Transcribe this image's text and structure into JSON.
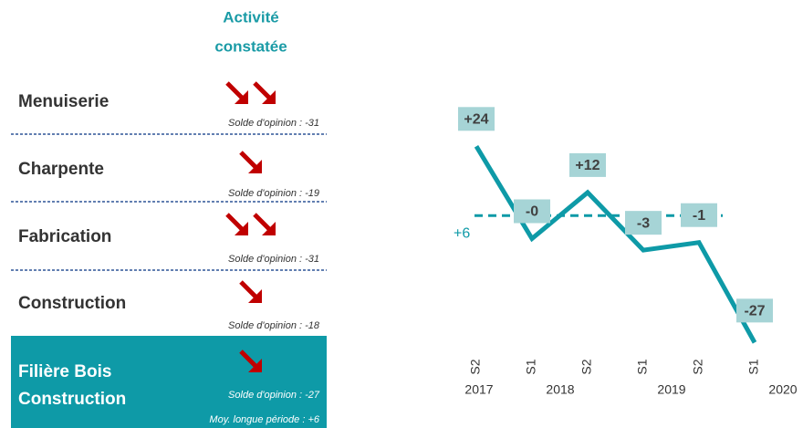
{
  "panel": {
    "header": [
      "Activité",
      "constatée"
    ],
    "rows": [
      {
        "label": [
          "Menuiserie"
        ],
        "arrows": 2,
        "notes": [
          "Solde d'opinion : -31"
        ]
      },
      {
        "label": [
          "Charpente"
        ],
        "arrows": 1,
        "notes": [
          "Solde d'opinion : -19"
        ]
      },
      {
        "label": [
          "Fabrication"
        ],
        "arrows": 2,
        "notes": [
          "Solde d'opinion : -31"
        ]
      },
      {
        "label": [
          "Construction"
        ],
        "arrows": 1,
        "notes": [
          "Solde d'opinion : -18"
        ]
      },
      {
        "label": [
          "Filière Bois",
          "Construction"
        ],
        "arrows": 1,
        "notes": [
          "Solde d'opinion : -27",
          "Moy. longue période : +6"
        ]
      }
    ]
  },
  "chart_data": {
    "type": "line",
    "categories": [
      "S2",
      "S1",
      "S2",
      "S1",
      "S2",
      "S1"
    ],
    "years": [
      "2017",
      "2018",
      "2019",
      "2020"
    ],
    "values": [
      24,
      0,
      12,
      -3,
      -1,
      -27
    ],
    "value_labels": [
      "+24",
      "-0",
      "+12",
      "-3",
      "-1",
      "-27"
    ],
    "color": "#0e9aa7",
    "reference": {
      "value": 6,
      "label": "+6"
    },
    "ylim": [
      -30,
      30
    ]
  }
}
